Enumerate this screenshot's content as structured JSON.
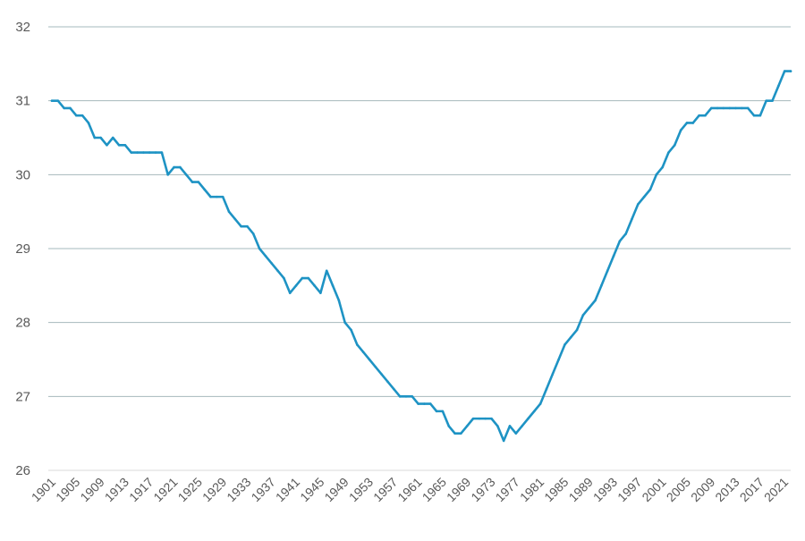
{
  "chart_data": {
    "type": "line",
    "title": "",
    "xlabel": "",
    "ylabel": "",
    "xlim": [
      1901,
      2022
    ],
    "ylim": [
      26,
      32
    ],
    "yticks": [
      26,
      27,
      28,
      29,
      30,
      31,
      32
    ],
    "xticks": [
      1901,
      1905,
      1909,
      1913,
      1917,
      1921,
      1925,
      1929,
      1933,
      1937,
      1941,
      1945,
      1949,
      1953,
      1957,
      1961,
      1965,
      1969,
      1973,
      1977,
      1981,
      1985,
      1989,
      1993,
      1997,
      2001,
      2005,
      2009,
      2013,
      2017,
      2021
    ],
    "grid": true,
    "legend": "none",
    "colors": {
      "line": "#1E93C4",
      "grid": "#A6B8BC",
      "axis": "#D9D9D9",
      "text": "#595959"
    },
    "series": [
      {
        "x": [
          1901,
          1902,
          1903,
          1904,
          1905,
          1906,
          1907,
          1908,
          1909,
          1910,
          1911,
          1912,
          1913,
          1914,
          1915,
          1916,
          1917,
          1918,
          1919,
          1920,
          1921,
          1922,
          1923,
          1924,
          1925,
          1926,
          1927,
          1928,
          1929,
          1930,
          1931,
          1932,
          1933,
          1934,
          1935,
          1936,
          1937,
          1938,
          1939,
          1940,
          1941,
          1942,
          1943,
          1944,
          1945,
          1946,
          1947,
          1948,
          1949,
          1950,
          1951,
          1952,
          1953,
          1954,
          1955,
          1956,
          1957,
          1958,
          1959,
          1960,
          1961,
          1962,
          1963,
          1964,
          1965,
          1966,
          1967,
          1968,
          1969,
          1970,
          1971,
          1972,
          1973,
          1974,
          1975,
          1976,
          1977,
          1978,
          1979,
          1980,
          1981,
          1982,
          1983,
          1984,
          1985,
          1986,
          1987,
          1988,
          1989,
          1990,
          1991,
          1992,
          1993,
          1994,
          1995,
          1996,
          1997,
          1998,
          1999,
          2000,
          2001,
          2002,
          2003,
          2004,
          2005,
          2006,
          2007,
          2008,
          2009,
          2010,
          2011,
          2012,
          2013,
          2014,
          2015,
          2016,
          2017,
          2018,
          2019,
          2020,
          2021,
          2022
        ],
        "values": [
          31.0,
          31.0,
          30.9,
          30.9,
          30.8,
          30.8,
          30.7,
          30.5,
          30.5,
          30.4,
          30.5,
          30.4,
          30.4,
          30.3,
          30.3,
          30.3,
          30.3,
          30.3,
          30.3,
          30.0,
          30.1,
          30.1,
          30.0,
          29.9,
          29.9,
          29.8,
          29.7,
          29.7,
          29.7,
          29.5,
          29.4,
          29.3,
          29.3,
          29.2,
          29.0,
          28.9,
          28.8,
          28.7,
          28.6,
          28.4,
          28.5,
          28.6,
          28.6,
          28.5,
          28.4,
          28.7,
          28.5,
          28.3,
          28.0,
          27.9,
          27.7,
          27.6,
          27.5,
          27.4,
          27.3,
          27.2,
          27.1,
          27.0,
          27.0,
          27.0,
          26.9,
          26.9,
          26.9,
          26.8,
          26.8,
          26.6,
          26.5,
          26.5,
          26.6,
          26.7,
          26.7,
          26.7,
          26.7,
          26.6,
          26.4,
          26.6,
          26.5,
          26.6,
          26.7,
          26.8,
          26.9,
          27.1,
          27.3,
          27.5,
          27.7,
          27.8,
          27.9,
          28.1,
          28.2,
          28.3,
          28.5,
          28.7,
          28.9,
          29.1,
          29.2,
          29.4,
          29.6,
          29.7,
          29.8,
          30.0,
          30.1,
          30.3,
          30.4,
          30.6,
          30.7,
          30.7,
          30.8,
          30.8,
          30.9,
          30.9,
          30.9,
          30.9,
          30.9,
          30.9,
          30.9,
          30.8,
          30.8,
          31.0,
          31.0,
          31.2,
          31.4,
          31.4
        ]
      }
    ]
  }
}
